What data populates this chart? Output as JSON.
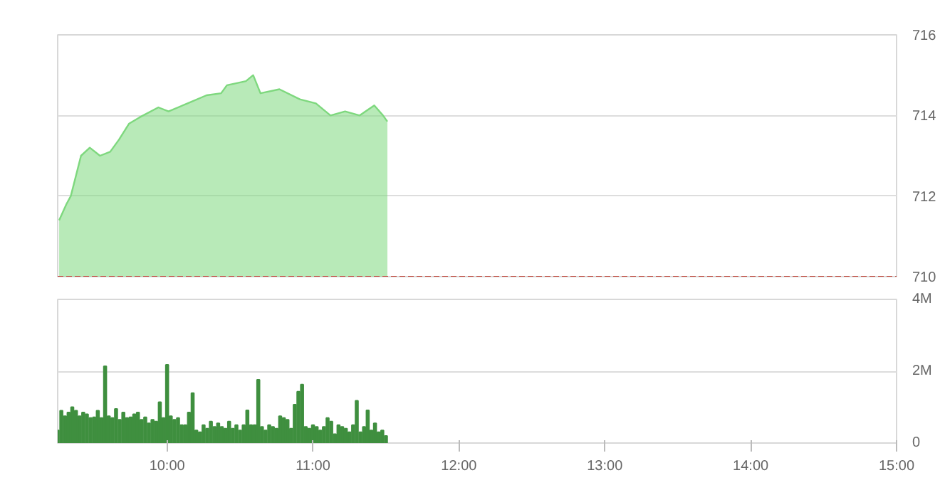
{
  "chart_data": [
    {
      "type": "area",
      "x": [
        9.26,
        9.31,
        9.34,
        9.41,
        9.47,
        9.54,
        9.61,
        9.67,
        9.74,
        9.81,
        9.94,
        10.01,
        10.14,
        10.27,
        10.37,
        10.41,
        10.54,
        10.59,
        10.64,
        10.77,
        10.91,
        11.02,
        11.12,
        11.22,
        11.32,
        11.42,
        11.48,
        11.51
      ],
      "values": [
        711.4,
        711.8,
        712.0,
        713.0,
        713.2,
        713.0,
        713.1,
        713.4,
        713.8,
        713.95,
        714.2,
        714.1,
        714.3,
        714.5,
        714.55,
        714.75,
        714.85,
        715.0,
        714.55,
        714.65,
        714.4,
        714.3,
        714.0,
        714.1,
        714.0,
        714.25,
        714.0,
        713.85
      ],
      "color": "#7ed87e",
      "xlim": [
        9.25,
        15.0
      ],
      "ylim": [
        710,
        716
      ],
      "yticks": [
        710,
        712,
        714,
        716
      ],
      "grid": "y",
      "tick_labels": "y",
      "ref_lines": [
        {
          "axis": "y",
          "value": 710,
          "color": "#c0392b",
          "line_style": "dashed"
        }
      ]
    },
    {
      "type": "bar",
      "x": [
        9.25,
        9.275,
        9.3,
        9.325,
        9.35,
        9.375,
        9.4,
        9.425,
        9.45,
        9.475,
        9.5,
        9.525,
        9.55,
        9.575,
        9.6,
        9.625,
        9.65,
        9.675,
        9.7,
        9.725,
        9.75,
        9.775,
        9.8,
        9.825,
        9.85,
        9.875,
        9.9,
        9.925,
        9.95,
        9.975,
        10.0,
        10.025,
        10.05,
        10.075,
        10.1,
        10.125,
        10.15,
        10.175,
        10.2,
        10.225,
        10.25,
        10.275,
        10.3,
        10.325,
        10.35,
        10.375,
        10.4,
        10.425,
        10.45,
        10.475,
        10.5,
        10.525,
        10.55,
        10.575,
        10.6,
        10.625,
        10.65,
        10.675,
        10.7,
        10.725,
        10.75,
        10.775,
        10.8,
        10.825,
        10.85,
        10.875,
        10.9,
        10.925,
        10.95,
        10.975,
        11.0,
        11.025,
        11.05,
        11.075,
        11.1,
        11.125,
        11.15,
        11.175,
        11.2,
        11.225,
        11.25,
        11.275,
        11.3,
        11.325,
        11.35,
        11.375,
        11.4,
        11.425,
        11.45,
        11.475,
        11.5
      ],
      "values": [
        0.35,
        0.9,
        0.75,
        0.85,
        1.0,
        0.9,
        0.75,
        0.85,
        0.8,
        0.7,
        0.72,
        0.9,
        0.7,
        2.14,
        0.75,
        0.7,
        0.95,
        0.65,
        0.85,
        0.7,
        0.72,
        0.8,
        0.85,
        0.65,
        0.72,
        0.55,
        0.65,
        0.6,
        1.14,
        0.7,
        2.18,
        0.75,
        0.65,
        0.7,
        0.5,
        0.5,
        0.85,
        1.39,
        0.35,
        0.3,
        0.5,
        0.4,
        0.6,
        0.45,
        0.55,
        0.45,
        0.4,
        0.6,
        0.4,
        0.5,
        0.35,
        0.5,
        0.91,
        0.5,
        0.5,
        1.76,
        0.45,
        0.35,
        0.5,
        0.45,
        0.4,
        0.75,
        0.7,
        0.65,
        0.4,
        1.07,
        1.43,
        1.63,
        0.45,
        0.4,
        0.5,
        0.45,
        0.35,
        0.45,
        0.7,
        0.6,
        0.25,
        0.5,
        0.45,
        0.4,
        0.3,
        0.5,
        1.18,
        0.3,
        0.45,
        0.91,
        0.35,
        0.55,
        0.3,
        0.35,
        0.2
      ],
      "color": "#3f8f3f",
      "xlim": [
        9.25,
        15.0
      ],
      "xticks": [
        {
          "value": 10,
          "label": "10:00"
        },
        {
          "value": 11,
          "label": "11:00"
        },
        {
          "value": 12,
          "label": "12:00"
        },
        {
          "value": 13,
          "label": "13:00"
        },
        {
          "value": 14,
          "label": "14:00"
        },
        {
          "value": 15,
          "label": "15:00"
        }
      ],
      "ylim": [
        0,
        4
      ],
      "yticks": [
        0,
        {
          "value": 2,
          "label": "2M"
        },
        {
          "value": 4,
          "label": "4M"
        }
      ],
      "grid": "y"
    }
  ]
}
